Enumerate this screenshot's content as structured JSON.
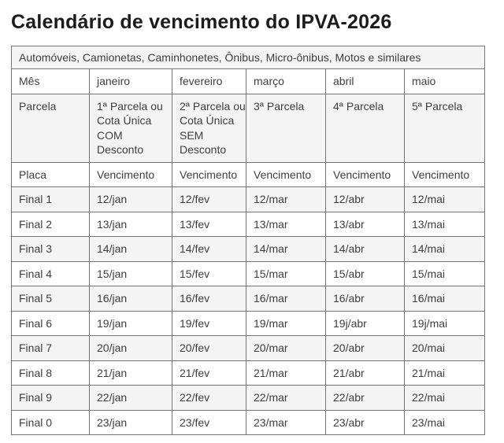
{
  "page": {
    "title": "Calendário de vencimento do IPVA-2026"
  },
  "table": {
    "caption": "Automóveis, Camionetas, Caminhonetes, Ônibus, Micro-ônibus, Motos e similares",
    "rows": [
      {
        "key": "mes",
        "label": "Mês",
        "values": [
          "janeiro",
          "fevereiro",
          "março",
          "abril",
          "maio"
        ]
      },
      {
        "key": "parcela",
        "label": "Parcela",
        "values": [
          "1ª Parcela ou\nCota Única\nCOM\nDesconto",
          "2ª Parcela ou\nCota Única\nSEM\nDesconto",
          "3ª Parcela",
          "4ª Parcela",
          "5ª Parcela"
        ]
      },
      {
        "key": "placa",
        "label": "Placa",
        "values": [
          "Vencimento",
          "Vencimento",
          "Vencimento",
          "Vencimento",
          "Vencimento"
        ]
      },
      {
        "key": "final-1",
        "label": "Final 1",
        "values": [
          "12/jan",
          "12/fev",
          "12/mar",
          "12/abr",
          "12/mai"
        ]
      },
      {
        "key": "final-2",
        "label": "Final 2",
        "values": [
          "13/jan",
          "13/fev",
          "13/mar",
          "13/abr",
          "13/mai"
        ]
      },
      {
        "key": "final-3",
        "label": "Final 3",
        "values": [
          "14/jan",
          "14/fev",
          "14/mar",
          "14/abr",
          "14/mai"
        ]
      },
      {
        "key": "final-4",
        "label": "Final 4",
        "values": [
          "15/jan",
          "15/fev",
          "15/mar",
          "15/abr",
          "15/mai"
        ]
      },
      {
        "key": "final-5",
        "label": "Final 5",
        "values": [
          "16/jan",
          "16/fev",
          "16/mar",
          "16/abr",
          "16/mai"
        ]
      },
      {
        "key": "final-6",
        "label": "Final 6",
        "values": [
          "19/jan",
          "19/fev",
          "19/mar",
          "19j/abr",
          "19j/mai"
        ]
      },
      {
        "key": "final-7",
        "label": "Final 7",
        "values": [
          "20/jan",
          "20/fev",
          "20/mar",
          "20/abr",
          "20/mai"
        ]
      },
      {
        "key": "final-8",
        "label": "Final 8",
        "values": [
          "21/jan",
          "21/fev",
          "21/mar",
          "21/abr",
          "21/mai"
        ]
      },
      {
        "key": "final-9",
        "label": "Final 9",
        "values": [
          "22/jan",
          "22/fev",
          "22/mar",
          "22/abr",
          "22/mai"
        ]
      },
      {
        "key": "final-0",
        "label": "Final 0",
        "values": [
          "23/jan",
          "23/fev",
          "23/mar",
          "23/abr",
          "23/mai"
        ]
      }
    ],
    "colors": {
      "stripe": "#f4f4f4",
      "border": "#757575",
      "text": "#3e3e3e",
      "title": "#1c1c1c",
      "background": "#ffffff"
    }
  }
}
